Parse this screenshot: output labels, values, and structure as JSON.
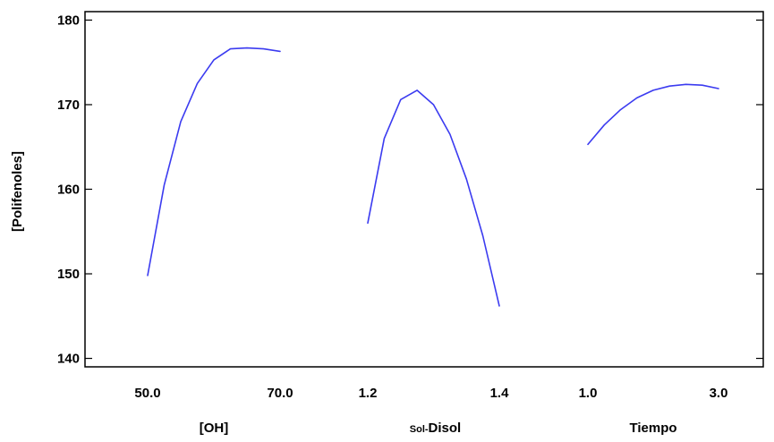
{
  "chart_data": {
    "type": "line",
    "title": "",
    "ylabel": "[Polifenoles]",
    "ylim": [
      139,
      181
    ],
    "yticks": [
      140,
      150,
      160,
      170,
      180
    ],
    "line_color": "#3b3bf0",
    "panels": [
      {
        "xlabel": "[OH]",
        "xlabel_prefix": "",
        "xtick_labels": [
          "50.0",
          "70.0"
        ],
        "xlim": [
          50.0,
          70.0
        ],
        "x": [
          50.0,
          52.5,
          55.0,
          57.5,
          60.0,
          62.5,
          65.0,
          67.5,
          70.0
        ],
        "y": [
          149.8,
          160.5,
          168.0,
          172.5,
          175.3,
          176.6,
          176.7,
          176.6,
          176.3
        ]
      },
      {
        "xlabel": "Disol",
        "xlabel_prefix": "Sol-",
        "xtick_labels": [
          "1.2",
          "1.4"
        ],
        "xlim": [
          1.2,
          1.4
        ],
        "x": [
          1.2,
          1.225,
          1.25,
          1.275,
          1.3,
          1.325,
          1.35,
          1.375,
          1.4
        ],
        "y": [
          156.0,
          166.0,
          170.6,
          171.7,
          170.0,
          166.5,
          161.2,
          154.5,
          146.2
        ]
      },
      {
        "xlabel": "Tiempo",
        "xlabel_prefix": "",
        "xtick_labels": [
          "1.0",
          "3.0"
        ],
        "xlim": [
          1.0,
          3.0
        ],
        "x": [
          1.0,
          1.25,
          1.5,
          1.75,
          2.0,
          2.25,
          2.5,
          2.75,
          3.0
        ],
        "y": [
          165.3,
          167.6,
          169.4,
          170.8,
          171.7,
          172.2,
          172.4,
          172.3,
          171.9
        ]
      }
    ]
  }
}
